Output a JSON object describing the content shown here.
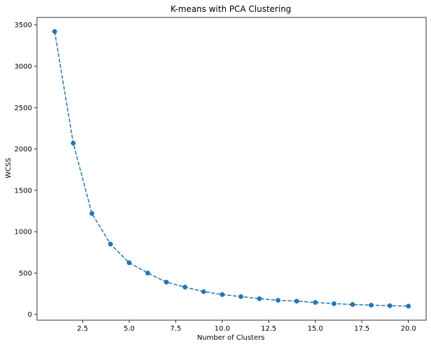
{
  "chart_data": {
    "type": "line",
    "title": "K-means with PCA Clustering",
    "xlabel": "Number of Clusters",
    "ylabel": "WCSS",
    "xlim": [
      0.05,
      20.95
    ],
    "ylim": [
      -70,
      3590
    ],
    "x_ticks": [
      2.5,
      5.0,
      7.5,
      10.0,
      12.5,
      15.0,
      17.5,
      20.0
    ],
    "x_tick_labels": [
      "2.5",
      "5.0",
      "7.5",
      "10.0",
      "12.5",
      "15.0",
      "17.5",
      "20.0"
    ],
    "y_ticks": [
      0,
      500,
      1000,
      1500,
      2000,
      2500,
      3000,
      3500
    ],
    "y_tick_labels": [
      "0",
      "500",
      "1000",
      "1500",
      "2000",
      "2500",
      "3000",
      "3500"
    ],
    "grid": false,
    "legend": false,
    "series": [
      {
        "color": "#1f77b4",
        "linestyle": "dashed",
        "marker": "circle",
        "x": [
          1,
          2,
          3,
          4,
          5,
          6,
          7,
          8,
          9,
          10,
          11,
          12,
          13,
          14,
          15,
          16,
          17,
          18,
          19,
          20
        ],
        "y": [
          3420,
          2070,
          1220,
          850,
          625,
          500,
          390,
          330,
          275,
          240,
          215,
          190,
          170,
          160,
          145,
          130,
          120,
          112,
          105,
          100
        ]
      }
    ]
  }
}
